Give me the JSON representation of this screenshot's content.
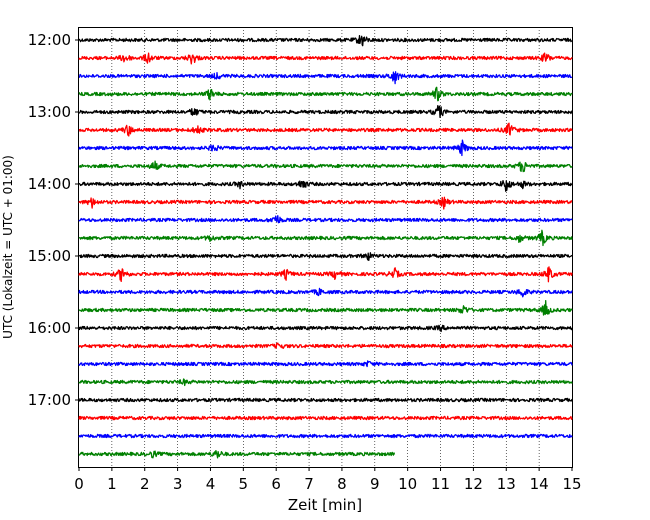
{
  "chart_data": {
    "type": "line",
    "title": "",
    "xlabel": "Zeit  [min]",
    "ylabel": "UTC (Lokalzeit = UTC + 01:00)",
    "xlim": [
      0,
      15
    ],
    "x_ticks": [
      "0",
      "1",
      "2",
      "3",
      "4",
      "5",
      "6",
      "7",
      "8",
      "9",
      "10",
      "11",
      "12",
      "13",
      "14",
      "15"
    ],
    "y_ticks": [
      "12:00",
      "13:00",
      "14:00",
      "15:00",
      "16:00",
      "17:00"
    ],
    "grid": "vertical dotted",
    "rows_per_hour": 4,
    "colors": [
      "#000000",
      "#ff0000",
      "#0000ff",
      "#008000"
    ],
    "series": [
      {
        "start": "12:00",
        "color": "#000000",
        "end_min": 15,
        "events": [
          [
            8.6,
            1.0
          ]
        ]
      },
      {
        "start": "12:15",
        "color": "#ff0000",
        "end_min": 15,
        "events": [
          [
            1.4,
            0.7
          ],
          [
            2.1,
            0.7
          ],
          [
            3.45,
            0.9
          ],
          [
            14.2,
            0.7
          ]
        ]
      },
      {
        "start": "12:30",
        "color": "#0000ff",
        "end_min": 15,
        "events": [
          [
            4.2,
            0.4
          ],
          [
            9.6,
            1.0
          ]
        ]
      },
      {
        "start": "12:45",
        "color": "#008000",
        "end_min": 15,
        "events": [
          [
            4.0,
            0.8
          ],
          [
            10.9,
            1.0
          ]
        ]
      },
      {
        "start": "13:00",
        "color": "#000000",
        "end_min": 15,
        "events": [
          [
            3.5,
            0.6
          ],
          [
            10.95,
            1.0
          ]
        ]
      },
      {
        "start": "13:15",
        "color": "#ff0000",
        "end_min": 15,
        "events": [
          [
            1.5,
            0.8
          ],
          [
            3.6,
            0.6
          ],
          [
            13.1,
            1.0
          ]
        ]
      },
      {
        "start": "13:30",
        "color": "#0000ff",
        "end_min": 15,
        "events": [
          [
            4.1,
            0.5
          ],
          [
            11.65,
            1.0
          ]
        ]
      },
      {
        "start": "13:45",
        "color": "#008000",
        "end_min": 15,
        "events": [
          [
            2.3,
            0.6
          ],
          [
            13.5,
            1.0
          ]
        ]
      },
      {
        "start": "14:00",
        "color": "#000000",
        "end_min": 15,
        "events": [
          [
            4.9,
            0.4
          ],
          [
            6.8,
            0.7
          ],
          [
            13.0,
            1.0
          ],
          [
            13.5,
            0.4
          ]
        ]
      },
      {
        "start": "14:15",
        "color": "#ff0000",
        "end_min": 15,
        "events": [
          [
            0.4,
            0.6
          ],
          [
            11.1,
            0.7
          ]
        ]
      },
      {
        "start": "14:30",
        "color": "#0000ff",
        "end_min": 15,
        "events": [
          [
            6.0,
            0.8
          ]
        ]
      },
      {
        "start": "14:45",
        "color": "#008000",
        "end_min": 15,
        "events": [
          [
            4.0,
            0.4
          ],
          [
            13.4,
            0.5
          ],
          [
            14.1,
            1.0
          ]
        ]
      },
      {
        "start": "15:00",
        "color": "#000000",
        "end_min": 15,
        "events": [
          [
            8.8,
            0.5
          ]
        ]
      },
      {
        "start": "15:15",
        "color": "#ff0000",
        "end_min": 15,
        "events": [
          [
            1.3,
            1.0
          ],
          [
            6.3,
            0.6
          ],
          [
            7.8,
            0.6
          ],
          [
            9.6,
            0.7
          ],
          [
            14.3,
            1.0
          ]
        ]
      },
      {
        "start": "15:30",
        "color": "#0000ff",
        "end_min": 15,
        "events": [
          [
            7.3,
            0.4
          ],
          [
            13.5,
            0.7
          ]
        ]
      },
      {
        "start": "15:45",
        "color": "#008000",
        "end_min": 15,
        "events": [
          [
            11.7,
            0.6
          ],
          [
            14.2,
            1.0
          ]
        ]
      },
      {
        "start": "16:00",
        "color": "#000000",
        "end_min": 15,
        "events": [
          [
            11.0,
            0.3
          ]
        ]
      },
      {
        "start": "16:15",
        "color": "#ff0000",
        "end_min": 15,
        "events": [
          [
            6.1,
            0.4
          ]
        ]
      },
      {
        "start": "16:30",
        "color": "#0000ff",
        "end_min": 15,
        "events": [
          [
            8.8,
            0.3
          ]
        ]
      },
      {
        "start": "16:45",
        "color": "#008000",
        "end_min": 15,
        "events": [
          [
            3.2,
            0.3
          ]
        ]
      },
      {
        "start": "17:00",
        "color": "#000000",
        "end_min": 15,
        "events": []
      },
      {
        "start": "17:15",
        "color": "#ff0000",
        "end_min": 15,
        "events": []
      },
      {
        "start": "17:30",
        "color": "#0000ff",
        "end_min": 15,
        "events": []
      },
      {
        "start": "17:45",
        "color": "#008000",
        "end_min": 9.6,
        "events": [
          [
            2.25,
            0.4
          ],
          [
            4.2,
            0.6
          ]
        ]
      }
    ]
  }
}
